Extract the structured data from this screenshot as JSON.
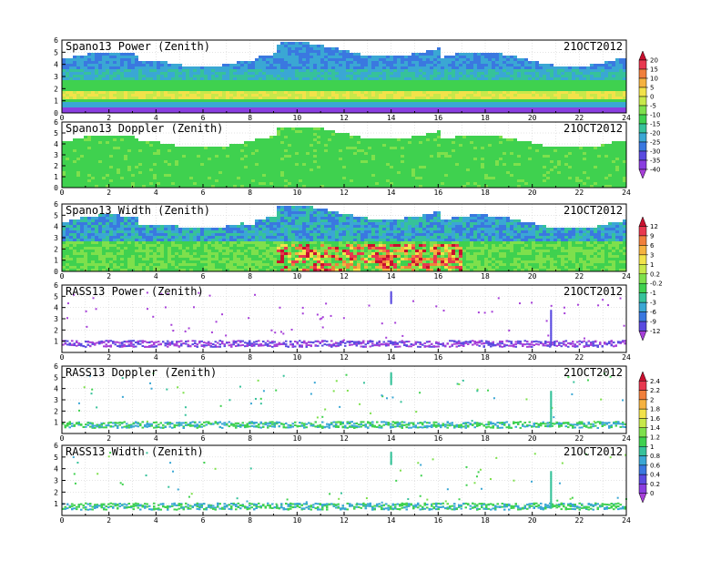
{
  "chart_data": [
    {
      "type": "heatmap",
      "title": "Spano13 Power (Zenith)",
      "date": "21OCT2012",
      "x_ticks": [
        "0",
        "2",
        "4",
        "6",
        "8",
        "10",
        "12",
        "14",
        "16",
        "18",
        "20",
        "22",
        "24"
      ],
      "y_ticks": [
        "0",
        "1",
        "2",
        "3",
        "4",
        "5",
        "6"
      ],
      "xlim": [
        0,
        24
      ],
      "ylim": [
        0,
        6
      ],
      "grid": true,
      "colorbar": "power"
    },
    {
      "type": "heatmap",
      "title": "Spano13 Doppler (Zenith)",
      "date": "21OCT2012",
      "x_ticks": [
        "0",
        "2",
        "4",
        "6",
        "8",
        "10",
        "12",
        "14",
        "16",
        "18",
        "20",
        "22",
        "24"
      ],
      "y_ticks": [
        "0",
        "1",
        "2",
        "3",
        "4",
        "5",
        "6"
      ],
      "xlim": [
        0,
        24
      ],
      "ylim": [
        0,
        6
      ],
      "grid": true,
      "colorbar": "power"
    },
    {
      "type": "heatmap",
      "title": "Spano13 Width (Zenith)",
      "date": "21OCT2012",
      "x_ticks": [
        "0",
        "2",
        "4",
        "6",
        "8",
        "10",
        "12",
        "14",
        "16",
        "18",
        "20",
        "22",
        "24"
      ],
      "y_ticks": [
        "0",
        "1",
        "2",
        "3",
        "4",
        "5",
        "6"
      ],
      "xlim": [
        0,
        24
      ],
      "ylim": [
        0,
        6
      ],
      "grid": true,
      "colorbar": "width"
    },
    {
      "type": "scatter",
      "title": "RASS13 Power (Zenith)",
      "date": "21OCT2012",
      "x_ticks": [
        "0",
        "2",
        "4",
        "6",
        "8",
        "10",
        "12",
        "14",
        "16",
        "18",
        "20",
        "22",
        "24"
      ],
      "y_ticks": [
        "1",
        "2",
        "3",
        "4",
        "5",
        "6"
      ],
      "xlim": [
        0,
        24
      ],
      "ylim": [
        0,
        6
      ],
      "grid": true,
      "colorbar": "width"
    },
    {
      "type": "scatter",
      "title": "RASS13 Doppler (Zenith)",
      "date": "21OCT2012",
      "x_ticks": [
        "0",
        "2",
        "4",
        "6",
        "8",
        "10",
        "12",
        "14",
        "16",
        "18",
        "20",
        "22",
        "24"
      ],
      "y_ticks": [
        "1",
        "2",
        "3",
        "4",
        "5",
        "6"
      ],
      "xlim": [
        0,
        24
      ],
      "ylim": [
        0,
        6
      ],
      "grid": true,
      "colorbar": "rass"
    },
    {
      "type": "scatter",
      "title": "RASS13 Width (Zenith)",
      "date": "21OCT2012",
      "x_ticks": [
        "0",
        "2",
        "4",
        "6",
        "8",
        "10",
        "12",
        "14",
        "16",
        "18",
        "20",
        "22",
        "24"
      ],
      "y_ticks": [
        "1",
        "2",
        "3",
        "4",
        "5",
        "6"
      ],
      "xlim": [
        0,
        24
      ],
      "ylim": [
        0,
        6
      ],
      "grid": true,
      "colorbar": "rass"
    }
  ],
  "colorbars": {
    "power": {
      "labels": [
        "20",
        "15",
        "10",
        "5",
        "0",
        "-5",
        "-10",
        "-15",
        "-20",
        "-25",
        "-30",
        "-35",
        "-40"
      ],
      "colors": [
        "#c8102e",
        "#e8384f",
        "#f07f3c",
        "#f5b240",
        "#f2e24a",
        "#c8e84a",
        "#7ee04c",
        "#3fd14f",
        "#36c29a",
        "#3aa7d4",
        "#3a78e0",
        "#5a4be0",
        "#8a3ee0",
        "#a63fd8"
      ]
    },
    "width": {
      "labels": [
        "12",
        "9",
        "6",
        "3",
        "1",
        "0.2",
        "-0.2",
        "-1",
        "-3",
        "-6",
        "-9",
        "-12"
      ],
      "colors": [
        "#c8102e",
        "#e8384f",
        "#f07f3c",
        "#f5b240",
        "#f2e24a",
        "#c8e84a",
        "#7ee04c",
        "#3fd14f",
        "#36c29a",
        "#3aa7d4",
        "#3a78e0",
        "#5a4be0",
        "#a63fd8"
      ]
    },
    "rass": {
      "labels": [
        "2.4",
        "2.2",
        "2",
        "1.8",
        "1.6",
        "1.4",
        "1.2",
        "1",
        "0.8",
        "0.6",
        "0.4",
        "0.2",
        "0"
      ],
      "colors": [
        "#c8102e",
        "#e8384f",
        "#f07f3c",
        "#f5b240",
        "#f2e24a",
        "#c8e84a",
        "#7ee04c",
        "#3fd14f",
        "#36c29a",
        "#3aa7d4",
        "#3a78e0",
        "#5a4be0",
        "#8a3ee0",
        "#a63fd8"
      ]
    }
  }
}
